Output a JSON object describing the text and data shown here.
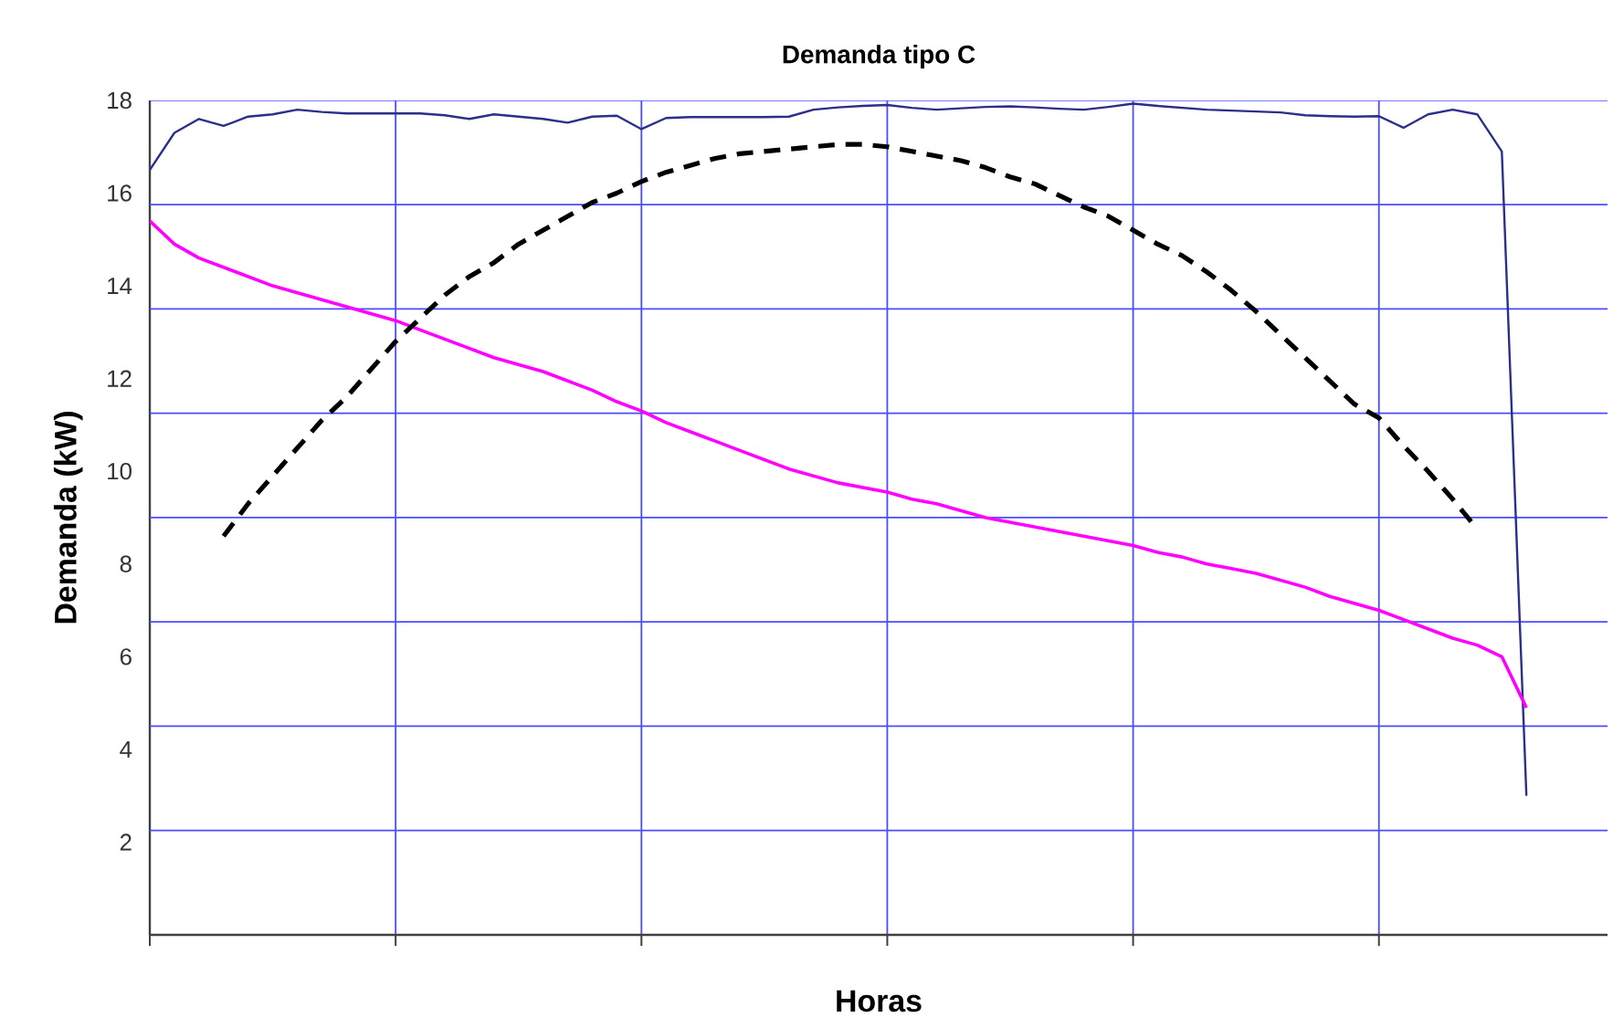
{
  "chart_data": {
    "type": "line",
    "title": "Demanda tipo C",
    "xlabel": "Horas",
    "ylabel": "Demanda (kW)",
    "categories": [
      null,
      null,
      null,
      null,
      null,
      null,
      null,
      null,
      null,
      null,
      null,
      null,
      null,
      null,
      null,
      null,
      null,
      null,
      null,
      null,
      null,
      null,
      null,
      null,
      null,
      null,
      null,
      null,
      null,
      null,
      null,
      null,
      null,
      null,
      null,
      null,
      null,
      null,
      null,
      null,
      null,
      null,
      null,
      null,
      null,
      null,
      null,
      null,
      null,
      null,
      null,
      null,
      null,
      null,
      null,
      null,
      null
    ],
    "ylim": [
      0,
      18
    ],
    "yticks": [
      2,
      4,
      6,
      8,
      10,
      12,
      14,
      16,
      18,
      {
        "value": 2.25,
        "label": null
      },
      {
        "value": 4.5,
        "label": null
      },
      {
        "value": 6.75,
        "label": null
      },
      {
        "value": 9,
        "label": null
      },
      {
        "value": 11.25,
        "label": null
      },
      {
        "value": 13.5,
        "label": null
      },
      {
        "value": 15.75,
        "label": null
      }
    ],
    "grid": true,
    "tick_labels": "y",
    "series": [
      {
        "color": "#2b2f8a",
        "line_style": "solid",
        "values": [
          16.5,
          17.3,
          17.6,
          17.45,
          17.65,
          17.7,
          17.8,
          17.75,
          17.72,
          17.72,
          17.72,
          17.72,
          17.68,
          17.6,
          17.7,
          17.65,
          17.6,
          17.52,
          17.65,
          17.67,
          17.38,
          17.62,
          17.64,
          17.64,
          17.64,
          17.64,
          17.65,
          17.8,
          17.85,
          17.88,
          17.9,
          17.84,
          17.8,
          17.83,
          17.86,
          17.87,
          17.85,
          17.82,
          17.8,
          17.86,
          17.93,
          17.88,
          17.84,
          17.8,
          17.78,
          17.76,
          17.74,
          17.68,
          17.66,
          17.65,
          17.66,
          17.41,
          17.7,
          17.8,
          17.7,
          16.9,
          3.0
        ]
      },
      {
        "color": "#ff00ff",
        "line_style": "solid",
        "values": [
          15.4,
          14.9,
          14.6,
          14.4,
          14.2,
          14.0,
          13.85,
          13.7,
          13.55,
          13.4,
          13.25,
          13.05,
          12.85,
          12.65,
          12.45,
          12.3,
          12.15,
          11.95,
          11.75,
          11.5,
          11.3,
          11.05,
          10.85,
          10.65,
          10.45,
          10.25,
          10.05,
          9.9,
          9.75,
          9.65,
          9.55,
          9.4,
          9.3,
          9.15,
          9.0,
          8.9,
          8.8,
          8.7,
          8.6,
          8.5,
          8.4,
          8.25,
          8.15,
          8.0,
          7.9,
          7.8,
          7.65,
          7.5,
          7.3,
          7.15,
          7.0,
          6.8,
          6.6,
          6.4,
          6.25,
          6.0,
          4.9
        ]
      },
      {
        "color": "#000000",
        "line_style": "dashed",
        "values": [
          null,
          null,
          null,
          8.6,
          9.3,
          9.9,
          10.5,
          11.1,
          11.6,
          12.2,
          12.8,
          13.3,
          13.8,
          14.2,
          14.5,
          14.9,
          15.2,
          15.5,
          15.8,
          16.0,
          16.25,
          16.45,
          16.6,
          16.75,
          16.85,
          16.9,
          16.95,
          17.0,
          17.05,
          17.05,
          17.0,
          16.9,
          16.8,
          16.7,
          16.55,
          16.35,
          16.2,
          15.95,
          15.7,
          15.5,
          15.2,
          14.9,
          14.65,
          14.3,
          13.9,
          13.45,
          12.95,
          12.45,
          11.95,
          11.45,
          11.15,
          10.55,
          10.0,
          9.4,
          8.75,
          null,
          null
        ]
      }
    ]
  }
}
